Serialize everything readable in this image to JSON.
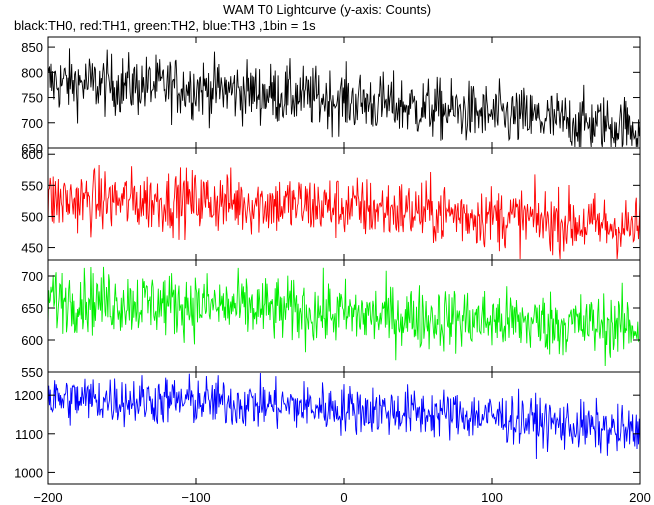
{
  "title": "WAM T0 Lightcurve (y-axis: Counts)",
  "subtitle": "black:TH0, red:TH1, green:TH2, blue:TH3 ,1bin = 1s",
  "chart_data": [
    {
      "type": "line",
      "name": "TH0",
      "color": "#000000",
      "x_range": [
        -200,
        200
      ],
      "ylim": [
        650,
        870
      ],
      "yticks": [
        650,
        700,
        750,
        800,
        850
      ],
      "trend": [
        [
          -200,
          780
        ],
        [
          -100,
          770
        ],
        [
          0,
          745
        ],
        [
          100,
          715
        ],
        [
          200,
          690
        ]
      ],
      "noise": 30
    },
    {
      "type": "line",
      "name": "TH1",
      "color": "#ff0000",
      "x_range": [
        -200,
        200
      ],
      "ylim": [
        430,
        610
      ],
      "yticks": [
        450,
        500,
        550,
        600
      ],
      "trend": [
        [
          -200,
          525
        ],
        [
          -100,
          525
        ],
        [
          0,
          515
        ],
        [
          100,
          500
        ],
        [
          200,
          480
        ]
      ],
      "noise": 25
    },
    {
      "type": "line",
      "name": "TH2",
      "color": "#00ee00",
      "x_range": [
        -200,
        200
      ],
      "ylim": [
        550,
        725
      ],
      "yticks": [
        550,
        600,
        650,
        700
      ],
      "trend": [
        [
          -200,
          665
        ],
        [
          -100,
          655
        ],
        [
          0,
          640
        ],
        [
          100,
          630
        ],
        [
          200,
          620
        ]
      ],
      "noise": 25
    },
    {
      "type": "line",
      "name": "TH3",
      "color": "#0000ff",
      "x_range": [
        -200,
        200
      ],
      "ylim": [
        970,
        1260
      ],
      "yticks": [
        1000,
        1100,
        1200
      ],
      "trend": [
        [
          -200,
          1190
        ],
        [
          -100,
          1185
        ],
        [
          0,
          1165
        ],
        [
          100,
          1145
        ],
        [
          200,
          1100
        ]
      ],
      "noise": 32
    }
  ],
  "x_axis": {
    "ticks": [
      -200,
      -100,
      0,
      100,
      200
    ]
  }
}
